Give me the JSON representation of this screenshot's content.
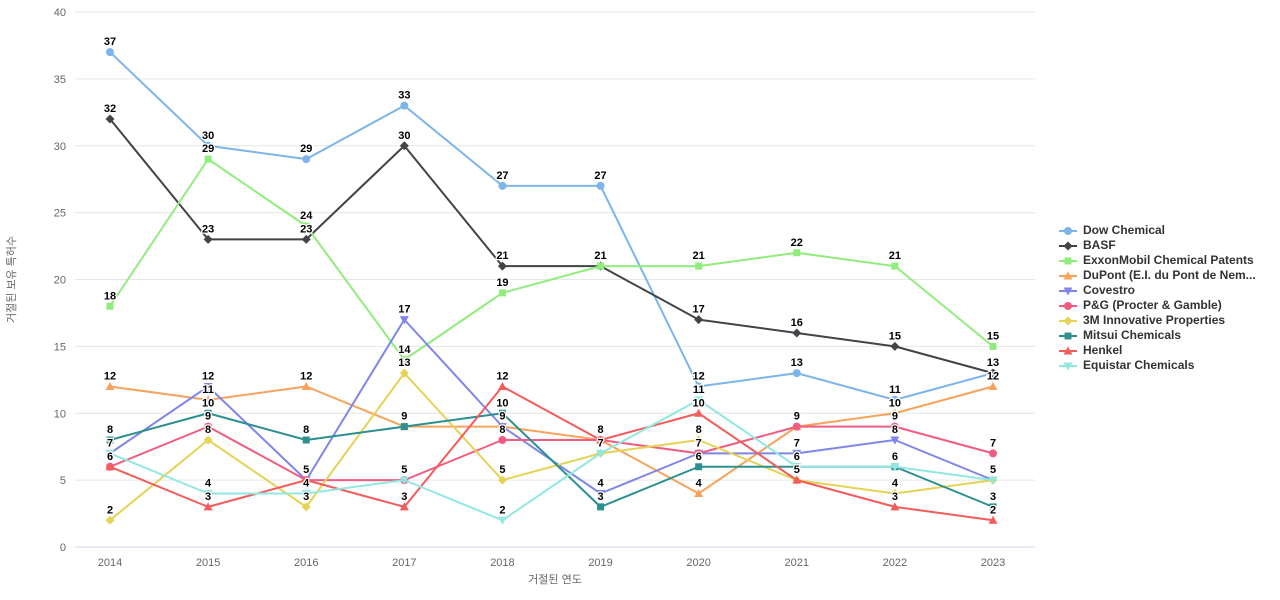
{
  "chart_data": {
    "type": "line",
    "title": "",
    "xlabel": "거절된 연도",
    "ylabel": "거절된 보유 특허수",
    "x": [
      2014,
      2015,
      2016,
      2017,
      2018,
      2019,
      2020,
      2021,
      2022,
      2023
    ],
    "ylim": [
      0,
      40
    ],
    "yticks": [
      0,
      5,
      10,
      15,
      20,
      25,
      30,
      35,
      40
    ],
    "grid": "horizontal-only",
    "legend_position": "right",
    "grid_color": "#e6e6e6",
    "axis_line_color": "#ccd6eb",
    "tick_text_color": "#666666",
    "data_label_color": "#000000",
    "legend_text_color": "#333333",
    "series": [
      {
        "name": "Dow Chemical",
        "color": "#7cb5ec",
        "marker": "circle",
        "values": [
          37,
          30,
          29,
          33,
          27,
          27,
          12,
          13,
          11,
          13
        ]
      },
      {
        "name": "BASF",
        "color": "#434348",
        "marker": "diamond",
        "values": [
          32,
          23,
          23,
          30,
          21,
          21,
          17,
          16,
          15,
          13
        ]
      },
      {
        "name": "ExxonMobil Chemical Patents",
        "color": "#90ed7d",
        "marker": "square",
        "values": [
          18,
          29,
          24,
          14,
          19,
          21,
          21,
          22,
          21,
          15
        ]
      },
      {
        "name": "DuPont (E.I. du Pont de Nem...",
        "color": "#f7a35c",
        "marker": "triangle",
        "values": [
          12,
          11,
          12,
          9,
          9,
          8,
          4,
          9,
          10,
          12
        ]
      },
      {
        "name": "Covestro",
        "color": "#8085e9",
        "marker": "triangle-down",
        "values": [
          7,
          12,
          5,
          17,
          9,
          4,
          7,
          7,
          8,
          5
        ]
      },
      {
        "name": "P&G (Procter & Gamble)",
        "color": "#f15c80",
        "marker": "circle",
        "values": [
          6,
          9,
          5,
          5,
          8,
          8,
          7,
          9,
          9,
          7
        ]
      },
      {
        "name": "3M Innovative Properties",
        "color": "#e4d354",
        "marker": "diamond",
        "values": [
          2,
          8,
          3,
          13,
          5,
          7,
          8,
          5,
          4,
          5
        ]
      },
      {
        "name": "Mitsui Chemicals",
        "color": "#2b908f",
        "marker": "square",
        "values": [
          8,
          10,
          8,
          9,
          10,
          3,
          6,
          6,
          6,
          3
        ]
      },
      {
        "name": "Henkel",
        "color": "#f45b5b",
        "marker": "triangle",
        "values": [
          6,
          3,
          5,
          3,
          12,
          8,
          10,
          5,
          3,
          2
        ]
      },
      {
        "name": "Equistar Chemicals",
        "color": "#91e8e1",
        "marker": "triangle-down",
        "values": [
          7,
          4,
          4,
          5,
          2,
          7,
          11,
          6,
          6,
          5
        ]
      }
    ]
  }
}
